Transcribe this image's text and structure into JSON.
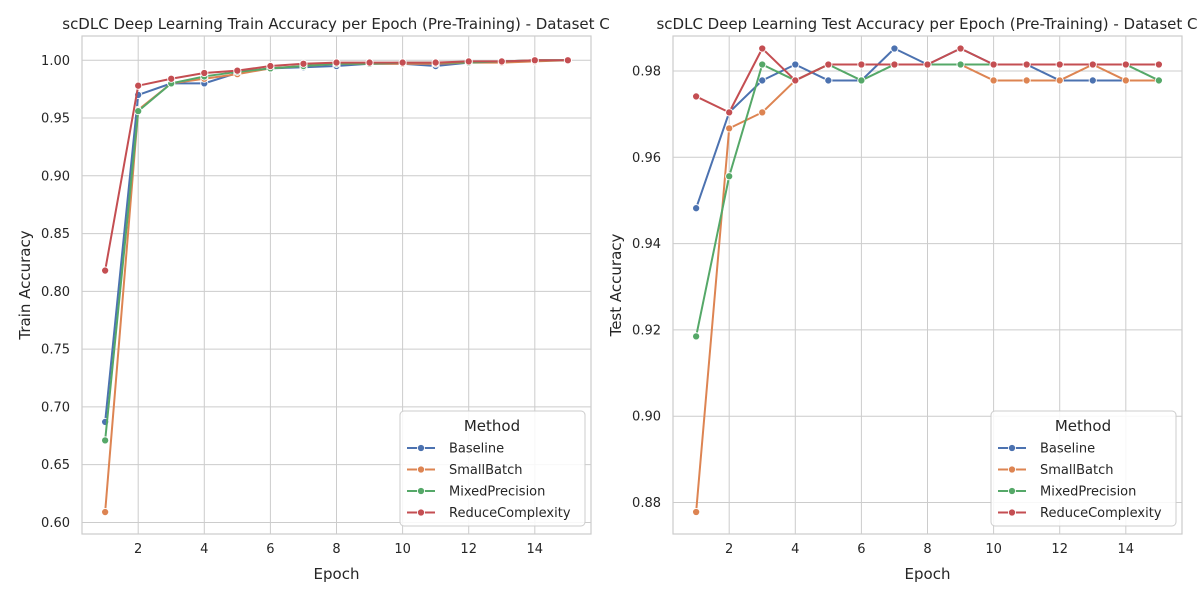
{
  "chart_data": [
    {
      "type": "line",
      "title": "scDLC Deep Learning Train Accuracy per Epoch (Pre-Training) - Dataset C",
      "xlabel": "Epoch",
      "ylabel": "Train Accuracy",
      "xlim": [
        0.3,
        15.7
      ],
      "ylim": [
        0.59,
        1.021
      ],
      "xticks": [
        2,
        4,
        6,
        8,
        10,
        12,
        14
      ],
      "yticks": [
        0.6,
        0.65,
        0.7,
        0.75,
        0.8,
        0.85,
        0.9,
        0.95,
        1.0
      ],
      "ytick_format": 2,
      "grid": true,
      "legend": {
        "title": "Method",
        "placement": "lower-right"
      },
      "x": [
        1,
        2,
        3,
        4,
        5,
        6,
        7,
        8,
        9,
        10,
        11,
        12,
        13,
        14,
        15
      ],
      "series": [
        {
          "name": "Baseline",
          "color": "#4c72b0",
          "values": [
            0.687,
            0.97,
            0.98,
            0.98,
            0.989,
            0.993,
            0.994,
            0.995,
            0.997,
            0.997,
            0.995,
            0.998,
            0.999,
            1.0,
            1.0
          ]
        },
        {
          "name": "SmallBatch",
          "color": "#dd8452",
          "values": [
            0.609,
            0.957,
            0.98,
            0.984,
            0.988,
            0.993,
            0.995,
            0.997,
            0.997,
            0.997,
            0.997,
            0.998,
            0.998,
            0.999,
            1.0
          ]
        },
        {
          "name": "MixedPrecision",
          "color": "#55a868",
          "values": [
            0.671,
            0.956,
            0.98,
            0.986,
            0.99,
            0.993,
            0.995,
            0.997,
            0.997,
            0.998,
            0.998,
            0.998,
            0.999,
            1.0,
            1.0
          ]
        },
        {
          "name": "ReduceComplexity",
          "color": "#c44e52",
          "values": [
            0.818,
            0.978,
            0.984,
            0.989,
            0.991,
            0.995,
            0.997,
            0.998,
            0.998,
            0.998,
            0.998,
            0.999,
            0.999,
            1.0,
            1.0
          ]
        }
      ]
    },
    {
      "type": "line",
      "title": "scDLC Deep Learning Test Accuracy per Epoch (Pre-Training) - Dataset C",
      "xlabel": "Epoch",
      "ylabel": "Test Accuracy",
      "xlim": [
        0.3,
        15.7
      ],
      "ylim": [
        0.8727,
        0.9881
      ],
      "xticks": [
        2,
        4,
        6,
        8,
        10,
        12,
        14
      ],
      "yticks": [
        0.88,
        0.9,
        0.92,
        0.94,
        0.96,
        0.98
      ],
      "ytick_format": 2,
      "grid": true,
      "legend": {
        "title": "Method",
        "placement": "lower-right"
      },
      "x": [
        1,
        2,
        3,
        4,
        5,
        6,
        7,
        8,
        9,
        10,
        11,
        12,
        13,
        14,
        15
      ],
      "series": [
        {
          "name": "Baseline",
          "color": "#4c72b0",
          "values": [
            0.9482,
            0.9704,
            0.9778,
            0.9815,
            0.9778,
            0.9778,
            0.9852,
            0.9815,
            0.9852,
            0.9815,
            0.9815,
            0.9778,
            0.9778,
            0.9778,
            0.9778
          ]
        },
        {
          "name": "SmallBatch",
          "color": "#dd8452",
          "values": [
            0.8778,
            0.9667,
            0.9704,
            0.9778,
            0.9815,
            0.9815,
            0.9815,
            0.9815,
            0.9815,
            0.9778,
            0.9778,
            0.9778,
            0.9815,
            0.9778,
            0.9778
          ]
        },
        {
          "name": "MixedPrecision",
          "color": "#55a868",
          "values": [
            0.9185,
            0.9556,
            0.9815,
            0.9778,
            0.9815,
            0.9778,
            0.9815,
            0.9815,
            0.9815,
            0.9815,
            0.9815,
            0.9815,
            0.9815,
            0.9815,
            0.9778
          ]
        },
        {
          "name": "ReduceComplexity",
          "color": "#c44e52",
          "values": [
            0.9741,
            0.9704,
            0.9852,
            0.9778,
            0.9815,
            0.9815,
            0.9815,
            0.9815,
            0.9852,
            0.9815,
            0.9815,
            0.9815,
            0.9815,
            0.9815,
            0.9815
          ]
        }
      ]
    }
  ]
}
